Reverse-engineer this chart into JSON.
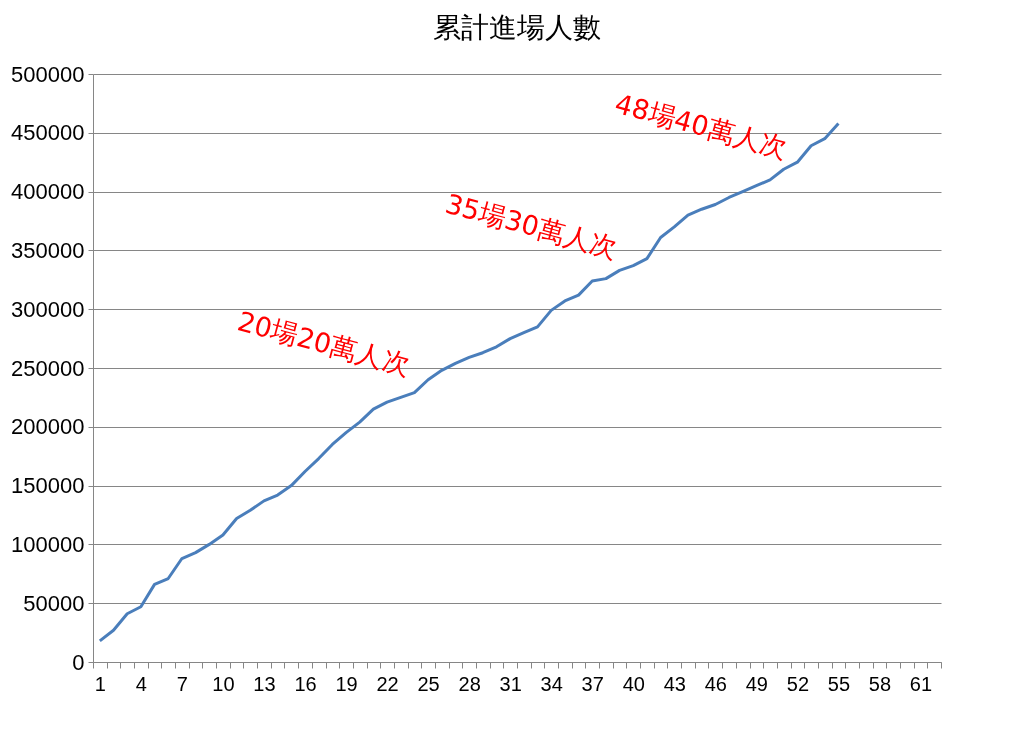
{
  "chart_data": {
    "type": "line",
    "title": "累計進場人數",
    "categories": [
      "1",
      null,
      null,
      "4",
      null,
      null,
      "7",
      null,
      null,
      "10",
      null,
      null,
      "13",
      null,
      null,
      "16",
      null,
      null,
      "19",
      null,
      null,
      "22",
      null,
      null,
      "25",
      null,
      null,
      "28",
      null,
      null,
      "31",
      null,
      null,
      "34",
      null,
      null,
      "37",
      null,
      null,
      "40",
      null,
      null,
      "43",
      null,
      null,
      "46",
      null,
      null,
      "49",
      null,
      null,
      "52",
      null,
      null,
      "55",
      null,
      null,
      "58",
      null,
      null,
      "61",
      null
    ],
    "series": [
      {
        "color": "#4a7ebb",
        "values": [
          18000,
          27000,
          41000,
          47000,
          66000,
          71000,
          88000,
          93000,
          100000,
          108000,
          122000,
          129000,
          137000,
          142000,
          150000,
          162000,
          173000,
          185000,
          195000,
          204000,
          215000,
          221000,
          225000,
          229000,
          240000,
          248000,
          254000,
          259000,
          263000,
          268000,
          275000,
          280000,
          285000,
          299000,
          307000,
          312000,
          324000,
          326000,
          333000,
          337000,
          343000,
          361000,
          370000,
          380000,
          385000,
          389000,
          395000,
          400000,
          405000,
          410000,
          419000,
          425000,
          439000,
          445000,
          458000,
          null,
          null,
          null,
          null,
          null,
          null,
          null
        ]
      }
    ],
    "ylim": [
      0,
      500000
    ],
    "yticks": [
      0,
      50000,
      100000,
      150000,
      200000,
      250000,
      300000,
      350000,
      400000,
      450000,
      500000
    ],
    "grid": "y",
    "legend": false,
    "marker": "none",
    "line_style": "solid",
    "annotations": [
      "20場20萬人次",
      "35場30萬人次",
      "48場40萬人次"
    ]
  }
}
